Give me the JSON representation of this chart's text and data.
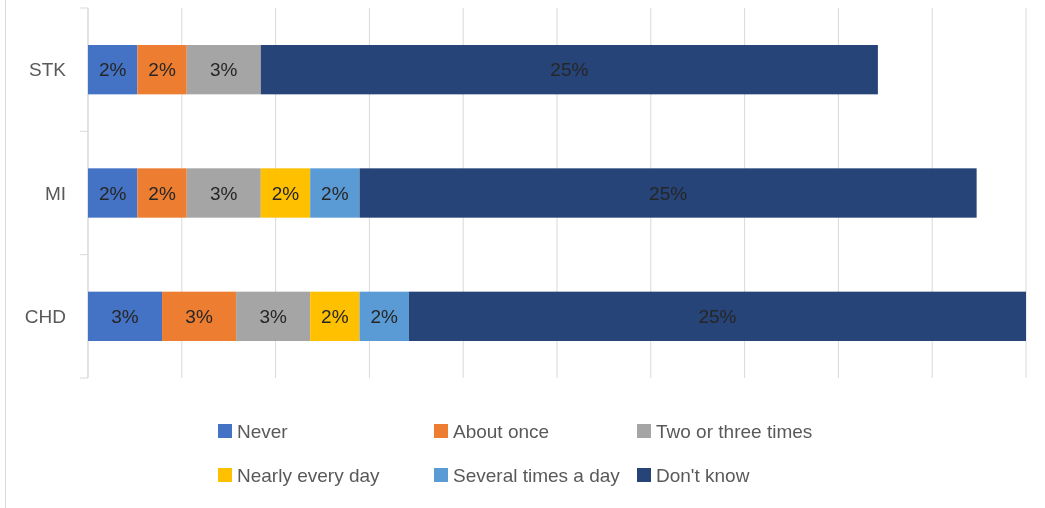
{
  "chart_data": {
    "type": "bar",
    "orientation": "horizontal",
    "stacked": true,
    "grid": "x",
    "legend": "bottom",
    "categories": [
      "STK",
      "MI",
      "CHD"
    ],
    "series": [
      {
        "name": "Never",
        "color": "#4472c4",
        "values": [
          2,
          2,
          3
        ],
        "value_labels": [
          "2%",
          "2%",
          "3%"
        ]
      },
      {
        "name": "About once",
        "color": "#ed7d31",
        "values": [
          2,
          2,
          3
        ],
        "value_labels": [
          "2%",
          "2%",
          "3%"
        ]
      },
      {
        "name": "Two or three times",
        "color": "#a5a5a5",
        "values": [
          3,
          3,
          3
        ],
        "value_labels": [
          "3%",
          "3%",
          "3%"
        ]
      },
      {
        "name": "Nearly every day",
        "color": "#ffc000",
        "values": [
          null,
          2,
          2
        ],
        "value_labels": [
          null,
          "2%",
          "2%"
        ]
      },
      {
        "name": "Several times a day",
        "color": "#5b9bd5",
        "values": [
          null,
          2,
          2
        ],
        "value_labels": [
          null,
          "2%",
          "2%"
        ]
      },
      {
        "name": "Don't know",
        "color": "#264478",
        "values": [
          25,
          25,
          25
        ],
        "value_labels": [
          "25%",
          "25%",
          "25%"
        ]
      }
    ]
  }
}
